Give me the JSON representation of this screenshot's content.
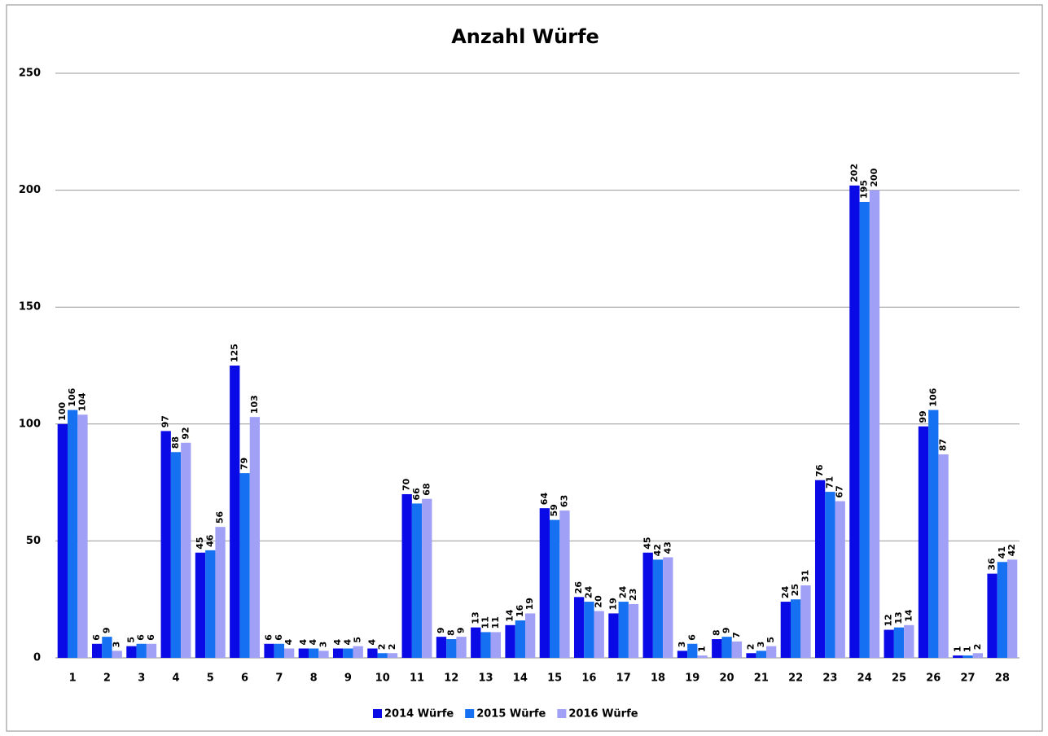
{
  "chart_data": {
    "type": "bar",
    "title": "Anzahl Würfe",
    "categories": [
      "1",
      "2",
      "3",
      "4",
      "5",
      "6",
      "7",
      "8",
      "9",
      "10",
      "11",
      "12",
      "13",
      "14",
      "15",
      "16",
      "17",
      "18",
      "19",
      "20",
      "21",
      "22",
      "23",
      "24",
      "25",
      "26",
      "27",
      "28"
    ],
    "series": [
      {
        "name": "2014 Würfe",
        "color": "#0a0ae6",
        "values": [
          100,
          6,
          5,
          97,
          45,
          125,
          6,
          4,
          4,
          4,
          70,
          9,
          13,
          14,
          64,
          26,
          19,
          45,
          3,
          8,
          2,
          24,
          76,
          202,
          12,
          99,
          1,
          36
        ]
      },
      {
        "name": "2015 Würfe",
        "color": "#1670f2",
        "values": [
          106,
          9,
          6,
          88,
          46,
          79,
          6,
          4,
          4,
          2,
          66,
          8,
          11,
          16,
          59,
          24,
          24,
          42,
          6,
          9,
          3,
          25,
          71,
          195,
          13,
          106,
          1,
          41
        ]
      },
      {
        "name": "2016 Würfe",
        "color": "#a0a0f6",
        "values": [
          104,
          3,
          6,
          92,
          56,
          103,
          4,
          3,
          5,
          2,
          68,
          9,
          11,
          19,
          63,
          20,
          23,
          43,
          1,
          7,
          5,
          31,
          67,
          200,
          14,
          87,
          2,
          42
        ]
      }
    ],
    "ylim": [
      0,
      250
    ],
    "yticks": [
      0,
      50,
      100,
      150,
      200,
      250
    ],
    "grid": true,
    "legend": "bottom",
    "value_labels_shown": true
  }
}
